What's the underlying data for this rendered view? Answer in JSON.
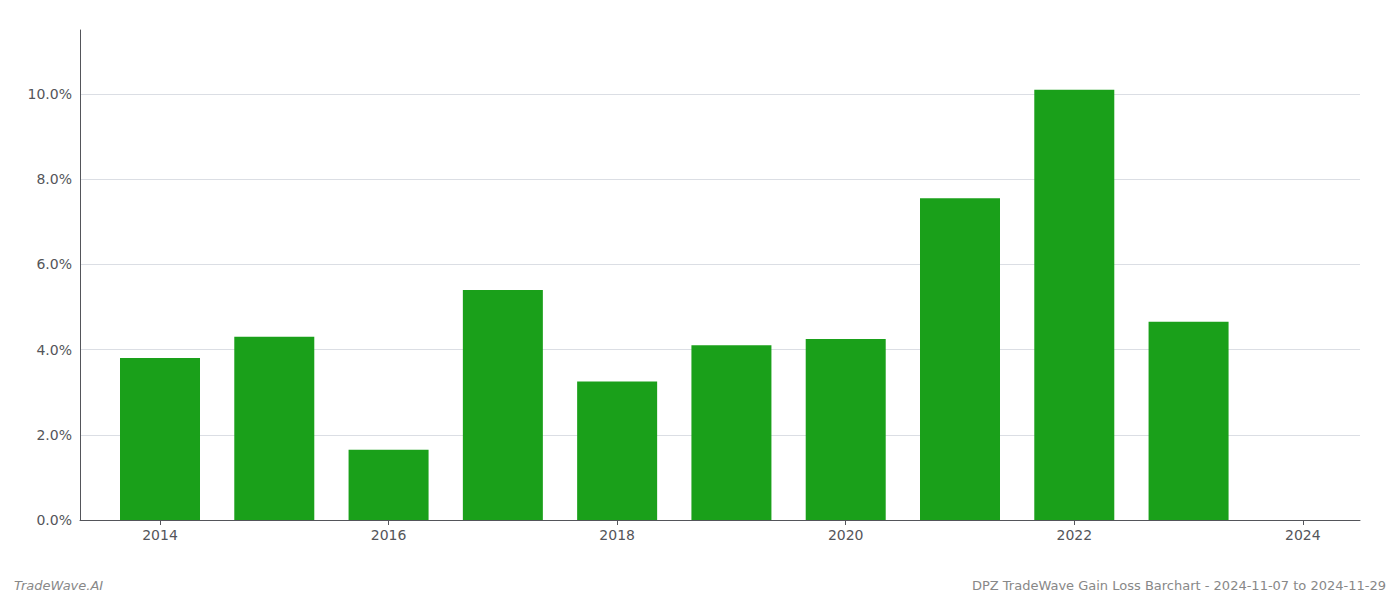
{
  "chart_data": {
    "type": "bar",
    "x": [
      2014,
      2015,
      2016,
      2017,
      2018,
      2019,
      2020,
      2021,
      2022,
      2023
    ],
    "values": [
      0.038,
      0.043,
      0.0165,
      0.054,
      0.0325,
      0.041,
      0.0425,
      0.0755,
      0.101,
      0.0465
    ],
    "color": "#1aa01a",
    "xlim": [
      2013.3,
      2024.5
    ],
    "xticks": [
      2014,
      2016,
      2018,
      2020,
      2022,
      2024
    ],
    "ylim": [
      0,
      0.115
    ],
    "yticks": [
      {
        "value": 0.0,
        "label": "0.0%"
      },
      {
        "value": 0.02,
        "label": "2.0%"
      },
      {
        "value": 0.04,
        "label": "4.0%"
      },
      {
        "value": 0.06,
        "label": "6.0%"
      },
      {
        "value": 0.08,
        "label": "8.0%"
      },
      {
        "value": 0.1,
        "label": "10.0%"
      }
    ],
    "grid": true,
    "annotations": [
      "TradeWave.AI",
      "DPZ TradeWave Gain Loss Barchart - 2024-11-07 to 2024-11-29"
    ]
  }
}
